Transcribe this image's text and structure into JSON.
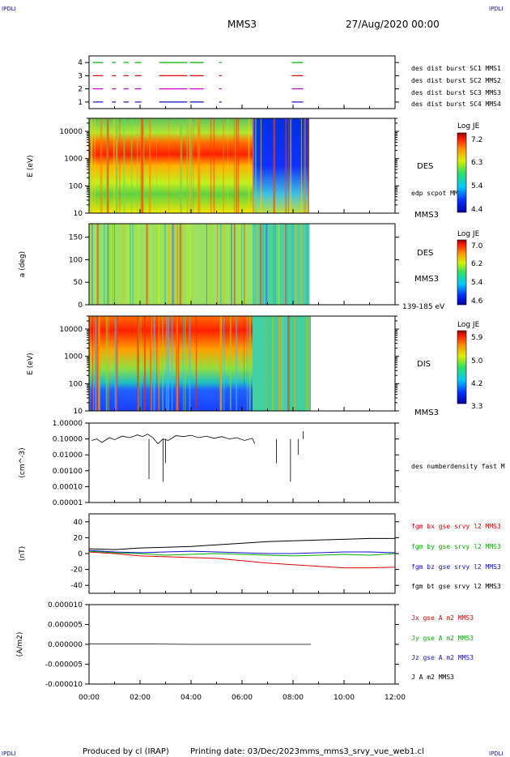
{
  "corner_tags": {
    "tl": "IPDLI",
    "tr": "IPDLI",
    "bl": "IPDLI",
    "br": "IPDLI"
  },
  "header": {
    "spacecraft": "MMS3",
    "date": "27/Aug/2020 00:00"
  },
  "footer": {
    "produced_by": "Produced by cl (IRAP)",
    "printing_date": "Printing date: 03/Dec/2023",
    "file": "mms_mms3_srvy_vue_web1.cl"
  },
  "colors": {
    "mms1": "#1010d0",
    "mms2": "#d000d0",
    "mms3": "#e00000",
    "mms4": "#00b000",
    "black": "#000000"
  },
  "chart_data": [
    {
      "type": "timeline",
      "ylim": [
        0.5,
        4.5
      ],
      "yticks": [
        "1",
        "2",
        "3",
        "4"
      ],
      "legend": [
        {
          "label": "des dist burst SC1 MMS1",
          "color": "#1010d0",
          "level": 1
        },
        {
          "label": "des dist burst SC2 MMS2",
          "color": "#d000d0",
          "level": 2
        },
        {
          "label": "des dist burst SC3 MMS3",
          "color": "#e00000",
          "level": 3
        },
        {
          "label": "des dist burst SC4 MMS4",
          "color": "#00b000",
          "level": 4
        }
      ],
      "intervals_hours": [
        [
          0.15,
          0.55
        ],
        [
          0.9,
          1.05
        ],
        [
          1.35,
          1.55
        ],
        [
          1.8,
          2.05
        ],
        [
          2.75,
          3.85
        ],
        [
          3.95,
          4.5
        ],
        [
          5.1,
          5.2
        ],
        [
          7.95,
          8.4
        ]
      ]
    },
    {
      "type": "heatmap",
      "instrument": "DES",
      "spacecraft": "MMS3",
      "ylabel": "E (eV)",
      "yscale": "log",
      "ylim": [
        10,
        30000
      ],
      "yticks": [
        "10",
        "100",
        "1000",
        "10000"
      ],
      "colorbar": {
        "title": "Log JE",
        "ticks": [
          "7.2",
          "6.3",
          "5.4",
          "4.4"
        ],
        "range": [
          4.4,
          7.2
        ]
      },
      "annotation": "edp scpot MMS3",
      "data_end_hours": 8.7
    },
    {
      "type": "heatmap",
      "instrument": "DES",
      "spacecraft": "MMS3",
      "ylabel": "a (deg)",
      "ylim": [
        0,
        180
      ],
      "yticks": [
        "0",
        "50",
        "100",
        "150"
      ],
      "colorbar": {
        "title": "Log JE",
        "ticks": [
          "7.0",
          "6.2",
          "5.4",
          "4.6"
        ],
        "range": [
          4.6,
          7.0
        ]
      },
      "energy_range": "139-185 eV",
      "data_end_hours": 8.7
    },
    {
      "type": "heatmap",
      "instrument": "DIS",
      "spacecraft": "MMS3",
      "ylabel": "E (eV)",
      "yscale": "log",
      "ylim": [
        10,
        30000
      ],
      "yticks": [
        "10",
        "100",
        "1000",
        "10000"
      ],
      "colorbar": {
        "title": "Log JE",
        "ticks": [
          "5.9",
          "5.0",
          "4.2",
          "3.3"
        ],
        "range": [
          3.3,
          5.9
        ]
      },
      "data_end_hours": 8.75
    },
    {
      "type": "line",
      "ylabel": "(cm^-3)",
      "yscale": "log",
      "ylim": [
        1e-05,
        1
      ],
      "yticks": [
        "1.00000",
        "0.10000",
        "0.01000",
        "0.00100",
        "0.00010",
        "0.00001"
      ],
      "series": [
        {
          "name": "des numberdensity fast M",
          "color": "#000000",
          "x": [
            0.1,
            0.3,
            0.5,
            0.8,
            1.0,
            1.3,
            1.6,
            1.9,
            2.1,
            2.3,
            2.5,
            2.7,
            2.9,
            3.1,
            3.4,
            3.7,
            4.0,
            4.3,
            4.6,
            4.9,
            5.2,
            5.5,
            5.8,
            6.1,
            6.4,
            6.5
          ],
          "y": [
            0.08,
            0.1,
            0.06,
            0.12,
            0.09,
            0.15,
            0.12,
            0.18,
            0.14,
            0.2,
            0.12,
            0.05,
            0.1,
            0.08,
            0.16,
            0.14,
            0.17,
            0.12,
            0.15,
            0.11,
            0.14,
            0.1,
            0.12,
            0.08,
            0.11,
            0.05
          ]
        }
      ]
    },
    {
      "type": "line",
      "ylabel": "(nT)",
      "ylim": [
        -50,
        50
      ],
      "yticks": [
        "40",
        "20",
        "0",
        "-20",
        "-40"
      ],
      "series": [
        {
          "name": "fgm bx gse srvy l2 MMS3",
          "color": "#e00000",
          "x": [
            0,
            1,
            2,
            3,
            4,
            5,
            6,
            7,
            8,
            9,
            10,
            11,
            12
          ],
          "y": [
            2,
            0,
            -3,
            -4,
            -5,
            -6,
            -9,
            -12,
            -14,
            -16,
            -18,
            -18,
            -17
          ]
        },
        {
          "name": "fgm by gse srvy l2 MMS3",
          "color": "#00b000",
          "x": [
            0,
            1,
            2,
            3,
            4,
            5,
            6,
            7,
            8,
            9,
            10,
            11,
            12
          ],
          "y": [
            3,
            1,
            0,
            -2,
            -1,
            0,
            -1,
            -2,
            -3,
            -2,
            -1,
            -2,
            0
          ]
        },
        {
          "name": "fgm bz gse srvy l2 MMS3",
          "color": "#1010d0",
          "x": [
            0,
            1,
            2,
            3,
            4,
            5,
            6,
            7,
            8,
            9,
            10,
            11,
            12
          ],
          "y": [
            4,
            2,
            1,
            2,
            3,
            2,
            1,
            0,
            0,
            1,
            2,
            2,
            1
          ]
        },
        {
          "name": "fgm bt gse srvy l2 MMS3",
          "color": "#000000",
          "x": [
            0,
            1,
            2,
            3,
            4,
            5,
            6,
            7,
            8,
            9,
            10,
            11,
            12
          ],
          "y": [
            6,
            5,
            7,
            8,
            9,
            11,
            13,
            15,
            16,
            17,
            18,
            19,
            19
          ]
        }
      ]
    },
    {
      "type": "line",
      "ylabel": "(A/m2)",
      "ylim": [
        -1e-05,
        1e-05
      ],
      "yticks": [
        "0.000010",
        "0.000005",
        "0.000000",
        "-0.000005",
        "-0.000010"
      ],
      "series": [
        {
          "name": "Jx gse A m2 MMS3",
          "color": "#e00000"
        },
        {
          "name": "Jy gse A m2 MMS3",
          "color": "#00b000"
        },
        {
          "name": "Jz gse A m2 MMS3",
          "color": "#1010d0"
        },
        {
          "name": "J A m2 MMS3",
          "color": "#000000",
          "x": [
            0,
            2,
            4,
            6,
            8,
            8.7
          ],
          "y": [
            1e-07,
            1e-07,
            0,
            0,
            0,
            0
          ]
        }
      ],
      "xlim": [
        0,
        12
      ],
      "xticks": [
        "00:00",
        "02:00",
        "04:00",
        "06:00",
        "08:00",
        "10:00",
        "12:00"
      ]
    }
  ]
}
